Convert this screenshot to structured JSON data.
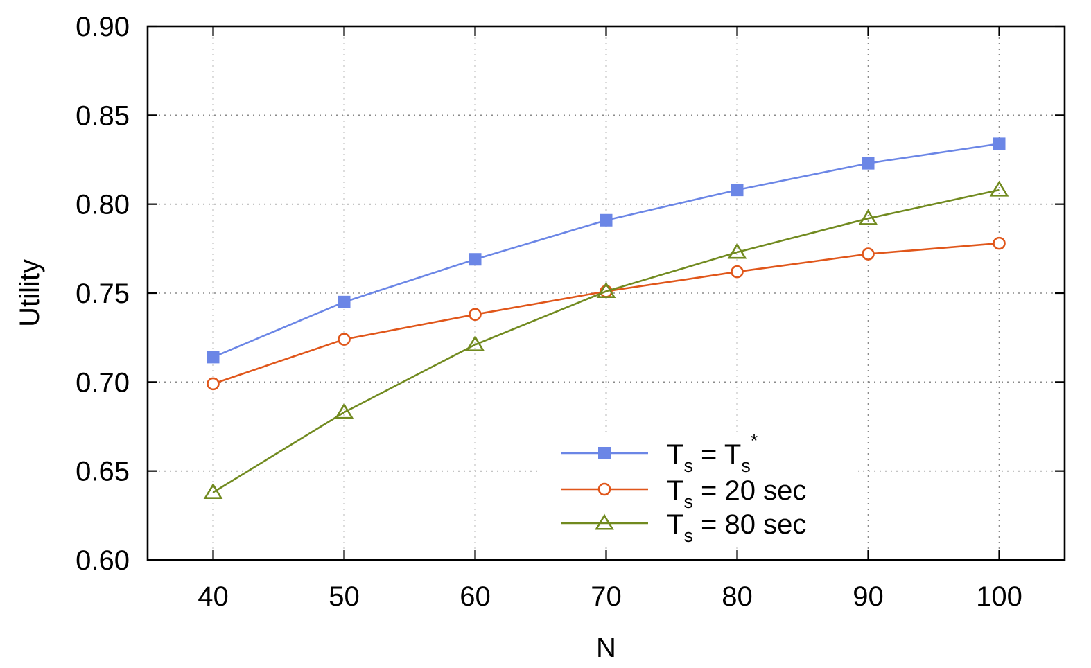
{
  "chart_data": {
    "type": "line",
    "title": "",
    "xlabel": "N",
    "ylabel": "Utility",
    "x": [
      40,
      50,
      60,
      70,
      80,
      90,
      100
    ],
    "x_tick_labels": [
      "40",
      "50",
      "60",
      "70",
      "80",
      "90",
      "100"
    ],
    "xlim": [
      35,
      105
    ],
    "ylim": [
      0.6,
      0.9
    ],
    "y_ticks": [
      0.6,
      0.65,
      0.7,
      0.75,
      0.8,
      0.85,
      0.9
    ],
    "y_tick_labels": [
      "0.60",
      "0.65",
      "0.70",
      "0.75",
      "0.80",
      "0.85",
      "0.90"
    ],
    "grid": true,
    "legend_position": "bottom-right",
    "series": [
      {
        "name": "Ts = Ts*",
        "legend": {
          "t": "T",
          "sub": "s",
          "eq": " = ",
          "t2": "T",
          "sub2": "s",
          "sup2": "*"
        },
        "marker": "filled-square",
        "color": "#6b86e6",
        "values": [
          0.714,
          0.745,
          0.769,
          0.791,
          0.808,
          0.823,
          0.834
        ]
      },
      {
        "name": "Ts = 20 sec",
        "legend": {
          "t": "T",
          "sub": "s",
          "rest": " = 20 sec"
        },
        "marker": "open-circle",
        "color": "#e0561a",
        "values": [
          0.699,
          0.724,
          0.738,
          0.751,
          0.762,
          0.772,
          0.778
        ]
      },
      {
        "name": "Ts = 80 sec",
        "legend": {
          "t": "T",
          "sub": "s",
          "rest": " = 80 sec"
        },
        "marker": "open-triangle",
        "color": "#718a1f",
        "values": [
          0.638,
          0.683,
          0.721,
          0.751,
          0.773,
          0.792,
          0.808
        ]
      }
    ]
  }
}
